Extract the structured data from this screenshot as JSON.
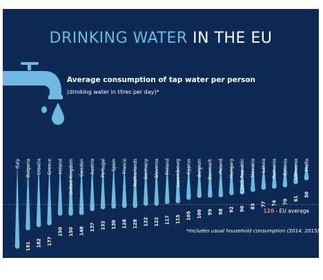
{
  "headline": {
    "part1": "DRINKING WATER",
    "part2": "IN THE EU"
  },
  "subtitle": "Average consumption of tap water per person",
  "subnote": "(drinking water in litres per day)*",
  "footnote": "*Includes usual household consumption (2014, 2015)",
  "colors": {
    "background": "#0d2a55",
    "accent": "#6fb8e0",
    "average": "#e8806b"
  },
  "chart_data": {
    "type": "bar",
    "categories": [
      "Italy",
      "Bulgaria",
      "Croatia",
      "Greece",
      "Ireland",
      "United Kingdom",
      "Sweden",
      "Austria",
      "Portugal",
      "Spain",
      "France",
      "Netherlands",
      "Germany",
      "Slovenia",
      "Finland",
      "Luxembourg",
      "Cyprus",
      "Belgium",
      "Denmark",
      "Poland",
      "Hungary",
      "Czech Republic",
      "Slovakia",
      "Latvia",
      "Romania",
      "Estonia",
      "Lithuania",
      "Malta"
    ],
    "values": [
      243,
      191,
      182,
      177,
      150,
      150,
      148,
      137,
      132,
      130,
      128,
      128,
      122,
      122,
      117,
      115,
      105,
      100,
      99,
      98,
      92,
      90,
      83,
      77,
      74,
      70,
      61,
      50
    ],
    "average": {
      "value": 120,
      "label": "EU average"
    },
    "ylim": [
      0,
      243
    ]
  }
}
